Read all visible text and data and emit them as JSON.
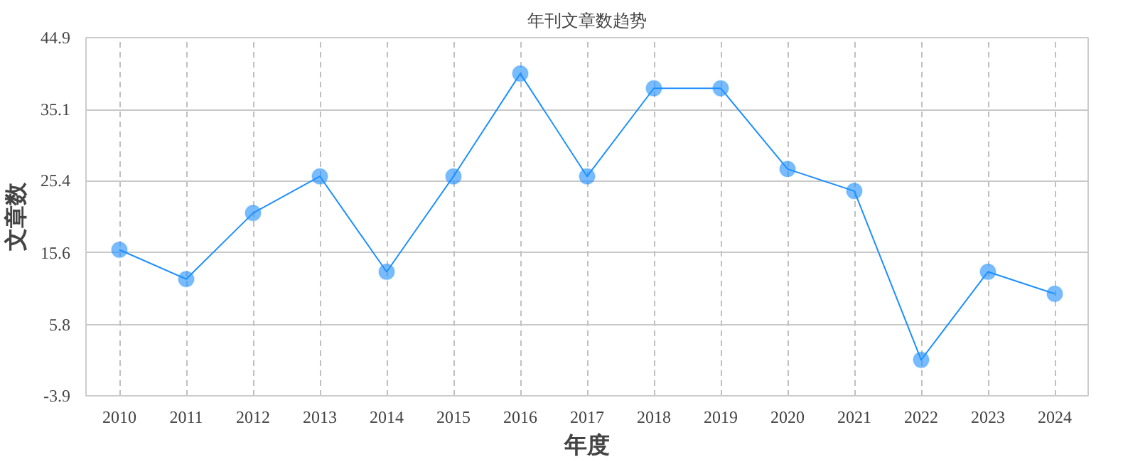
{
  "chart_data": {
    "type": "line",
    "title": "年刊文章数趋势",
    "xlabel": "年度",
    "ylabel": "文章数",
    "categories": [
      "2010",
      "2011",
      "2012",
      "2013",
      "2014",
      "2015",
      "2016",
      "2017",
      "2018",
      "2019",
      "2020",
      "2021",
      "2022",
      "2023",
      "2024"
    ],
    "series": [
      {
        "color": "#1e90ff",
        "values": [
          16,
          12,
          21,
          26,
          13,
          26,
          40,
          26,
          38,
          38,
          27,
          24,
          1,
          13,
          10
        ]
      }
    ],
    "ylim": [
      -3.9,
      44.9
    ],
    "yticks": [
      -3.9,
      5.8,
      15.6,
      25.4,
      35.1,
      44.9
    ],
    "grid": true,
    "marker": "circle",
    "line_style": "solid"
  }
}
